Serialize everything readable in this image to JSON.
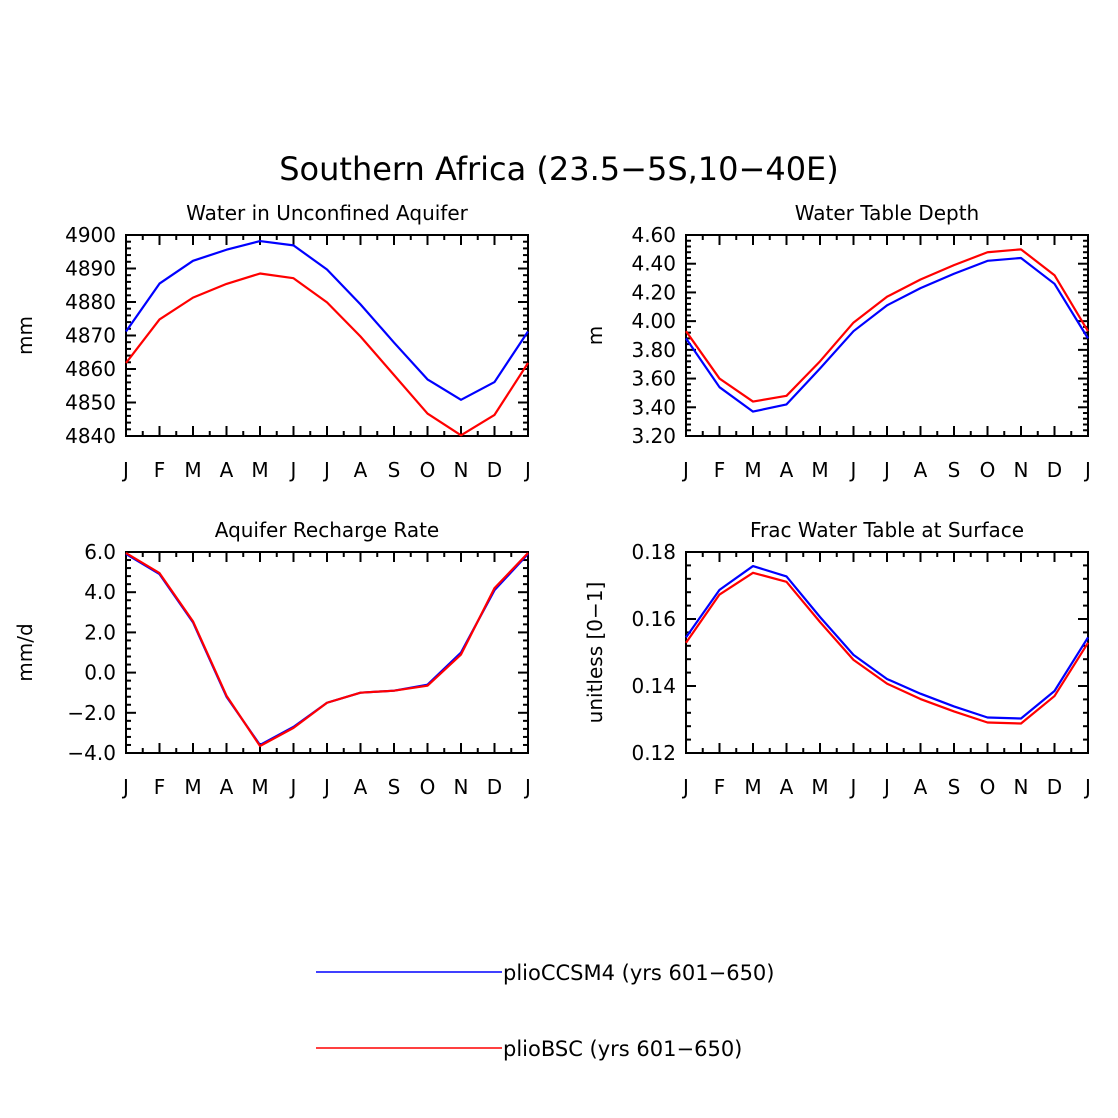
{
  "title": "Southern Africa (23.5-5S,10-40E)",
  "colors": {
    "plioCCSM4": "#0000ff",
    "plioBSC": "#ff0000",
    "axis": "#000000"
  },
  "legend": [
    {
      "series": "plioCCSM4",
      "label": "plioCCSM4 (yrs 601-650)",
      "color": "#0000ff"
    },
    {
      "series": "plioBSC",
      "label": "plioBSC (yrs 601-650)",
      "color": "#ff0000"
    }
  ],
  "chart_data": [
    {
      "type": "line",
      "title": "Water in Unconfined Aquifer",
      "ylabel": "mm",
      "xlabel": "",
      "categories": [
        "J",
        "F",
        "M",
        "A",
        "M",
        "J",
        "J",
        "A",
        "S",
        "O",
        "N",
        "D",
        "J"
      ],
      "ylim": [
        4840,
        4900
      ],
      "yticks": [
        4840,
        4850,
        4860,
        4870,
        4880,
        4890,
        4900
      ],
      "ytick_labels": [
        "4840",
        "4850",
        "4860",
        "4870",
        "4880",
        "4890",
        "4900"
      ],
      "series": [
        {
          "name": "plioCCSM4",
          "color": "#0000ff",
          "values": [
            4871.2,
            4885.5,
            4892.3,
            4895.6,
            4898.2,
            4896.9,
            4889.7,
            4879.3,
            4867.9,
            4856.9,
            4850.8,
            4856.1,
            4871.2
          ]
        },
        {
          "name": "plioBSC",
          "color": "#ff0000",
          "values": [
            4861.8,
            4874.8,
            4881.3,
            4885.4,
            4888.5,
            4887.1,
            4879.9,
            4869.7,
            4858.2,
            4846.7,
            4840.2,
            4846.3,
            4861.8
          ]
        }
      ]
    },
    {
      "type": "line",
      "title": "Water Table Depth",
      "ylabel": "m",
      "xlabel": "",
      "categories": [
        "J",
        "F",
        "M",
        "A",
        "M",
        "J",
        "J",
        "A",
        "S",
        "O",
        "N",
        "D",
        "J"
      ],
      "ylim": [
        3.2,
        4.6
      ],
      "yticks": [
        3.2,
        3.4,
        3.6,
        3.8,
        4.0,
        4.2,
        4.4,
        4.6
      ],
      "ytick_labels": [
        "3.20",
        "3.40",
        "3.60",
        "3.80",
        "4.00",
        "4.20",
        "4.40",
        "4.60"
      ],
      "series": [
        {
          "name": "plioCCSM4",
          "color": "#0000ff",
          "values": [
            3.88,
            3.54,
            3.37,
            3.42,
            3.67,
            3.93,
            4.11,
            4.23,
            4.33,
            4.42,
            4.44,
            4.26,
            3.88
          ]
        },
        {
          "name": "plioBSC",
          "color": "#ff0000",
          "values": [
            3.93,
            3.6,
            3.44,
            3.48,
            3.72,
            3.99,
            4.17,
            4.29,
            4.39,
            4.48,
            4.5,
            4.32,
            3.93
          ]
        }
      ]
    },
    {
      "type": "line",
      "title": "Aquifer Recharge Rate",
      "ylabel": "mm/d",
      "xlabel": "",
      "categories": [
        "J",
        "F",
        "M",
        "A",
        "M",
        "J",
        "J",
        "A",
        "S",
        "O",
        "N",
        "D",
        "J"
      ],
      "ylim": [
        -4.0,
        6.0
      ],
      "yticks": [
        -4.0,
        -2.0,
        0.0,
        2.0,
        4.0,
        6.0
      ],
      "ytick_labels": [
        "-4.0",
        "-2.0",
        "0.0",
        "2.0",
        "4.0",
        "6.0"
      ],
      "series": [
        {
          "name": "plioCCSM4",
          "color": "#0000ff",
          "values": [
            5.9,
            4.9,
            2.5,
            -1.2,
            -3.6,
            -2.7,
            -1.5,
            -1.0,
            -0.9,
            -0.6,
            1.0,
            4.1,
            5.9
          ]
        },
        {
          "name": "plioBSC",
          "color": "#ff0000",
          "values": [
            5.95,
            4.95,
            2.55,
            -1.15,
            -3.65,
            -2.75,
            -1.5,
            -1.0,
            -0.9,
            -0.65,
            0.9,
            4.2,
            5.95
          ]
        }
      ]
    },
    {
      "type": "line",
      "title": "Frac Water Table at Surface",
      "ylabel": "unitless [0-1]",
      "xlabel": "",
      "categories": [
        "J",
        "F",
        "M",
        "A",
        "M",
        "J",
        "J",
        "A",
        "S",
        "O",
        "N",
        "D",
        "J"
      ],
      "ylim": [
        0.12,
        0.18
      ],
      "yticks": [
        0.12,
        0.14,
        0.16,
        0.18
      ],
      "ytick_labels": [
        "0.12",
        "0.14",
        "0.16",
        "0.18"
      ],
      "series": [
        {
          "name": "plioCCSM4",
          "color": "#0000ff",
          "values": [
            0.1545,
            0.1687,
            0.1758,
            0.1727,
            0.1606,
            0.1493,
            0.1421,
            0.1377,
            0.1339,
            0.1306,
            0.1303,
            0.1385,
            0.1545
          ]
        },
        {
          "name": "plioBSC",
          "color": "#ff0000",
          "values": [
            0.1529,
            0.1673,
            0.1738,
            0.1711,
            0.1591,
            0.1478,
            0.1407,
            0.1361,
            0.1324,
            0.1291,
            0.1288,
            0.137,
            0.1529
          ]
        }
      ]
    }
  ]
}
